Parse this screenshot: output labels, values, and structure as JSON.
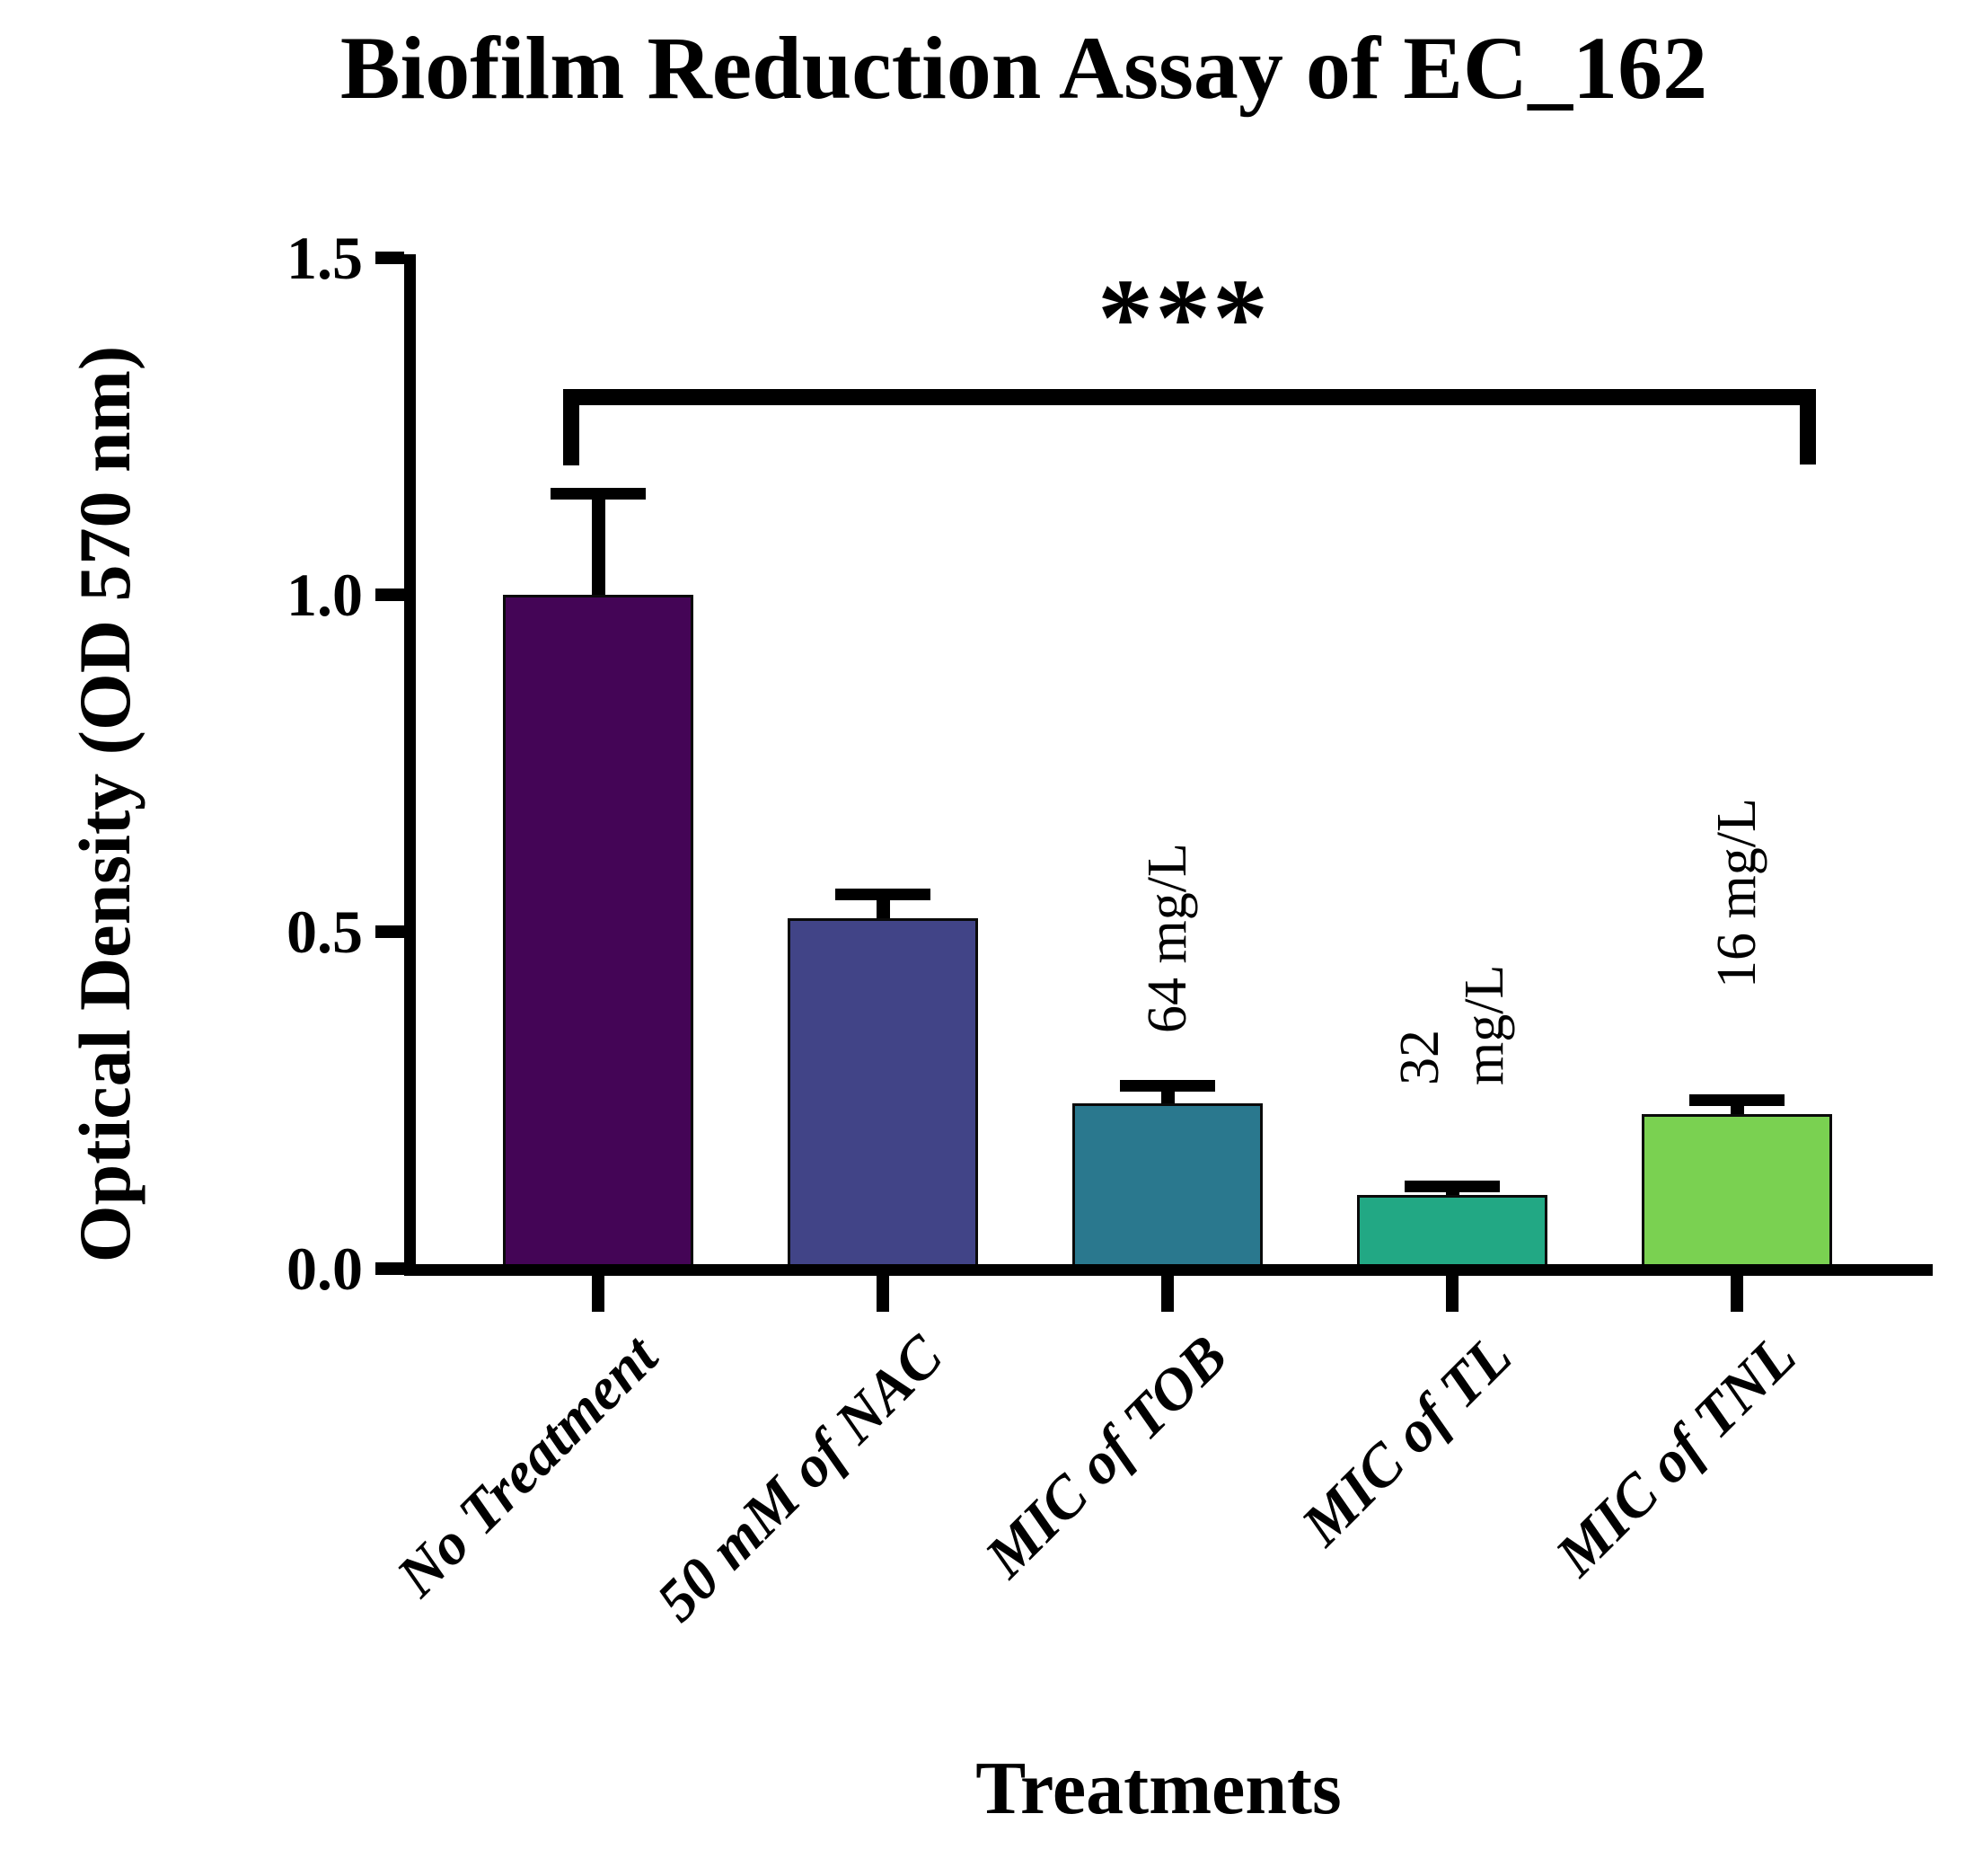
{
  "title": "Biofilm Reduction Assay of EC_162",
  "chart_data": {
    "type": "bar",
    "title": "Biofilm Reduction Assay of EC_162",
    "xlabel": "Treatments",
    "ylabel": "Optical Density (OD 570 nm)",
    "ylim": [
      0,
      1.5
    ],
    "yticks": [
      0.0,
      0.5,
      1.0,
      1.5
    ],
    "ytick_labels": [
      "0.0",
      "0.5",
      "1.0",
      "1.5"
    ],
    "categories": [
      "No Treatment",
      "50 mM of NAC",
      "MIC of TOB",
      "MIC of TL",
      "MIC of TNL"
    ],
    "values": [
      1.0,
      0.52,
      0.245,
      0.11,
      0.23
    ],
    "errors_plus": [
      0.15,
      0.035,
      0.027,
      0.012,
      0.02
    ],
    "bar_colors": [
      "#440556",
      "#414487",
      "#2a788e",
      "#22a884",
      "#7ad151"
    ],
    "bar_annotations": [
      "",
      "",
      "64 mg/L",
      "32\nmg/L",
      "16 mg/L"
    ],
    "significance": {
      "label": "***",
      "from_category": "No Treatment",
      "to_category": "MIC of TNL"
    },
    "grid": false,
    "legend": null,
    "error_bar_style": "caps, upper only",
    "axis_color": "#000000"
  }
}
